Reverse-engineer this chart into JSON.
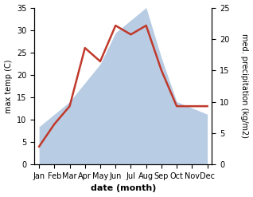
{
  "months": [
    "Jan",
    "Feb",
    "Mar",
    "Apr",
    "May",
    "Jun",
    "Jul",
    "Aug",
    "Sep",
    "Oct",
    "Nov",
    "Dec"
  ],
  "temperature": [
    4,
    9,
    13,
    26,
    23,
    31,
    29,
    31,
    21,
    13,
    13,
    13
  ],
  "precipitation": [
    6,
    8,
    10,
    13,
    16,
    21,
    23,
    25,
    17,
    10,
    9,
    8
  ],
  "temp_color": "#c0392b",
  "precip_color": "#b8cce4",
  "temp_ylim": [
    0,
    35
  ],
  "precip_ylim": [
    0,
    25
  ],
  "temp_yticks": [
    0,
    5,
    10,
    15,
    20,
    25,
    30,
    35
  ],
  "precip_yticks": [
    0,
    5,
    10,
    15,
    20,
    25
  ],
  "xlabel": "date (month)",
  "ylabel_left": "max temp (C)",
  "ylabel_right": "med. precipitation (kg/m2)",
  "background_color": "#ffffff",
  "temp_linewidth": 1.8,
  "label_fontsize": 7,
  "xlabel_fontsize": 8
}
